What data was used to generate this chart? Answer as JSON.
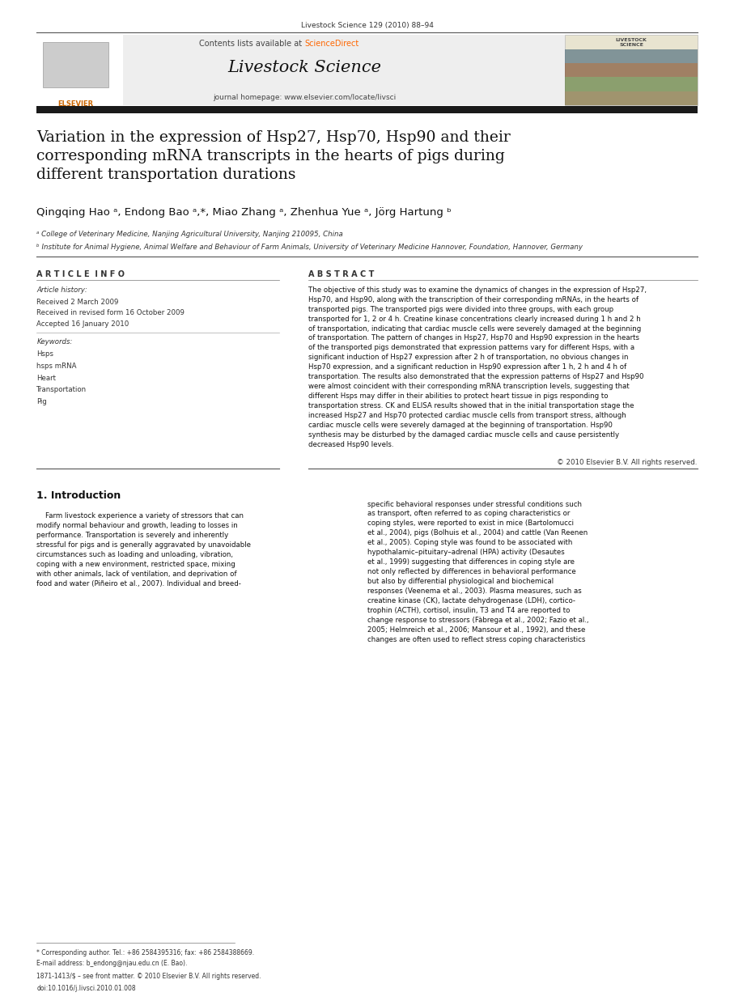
{
  "page_width": 9.07,
  "page_height": 12.37,
  "bg_color": "#ffffff",
  "journal_ref": "Livestock Science 129 (2010) 88–94",
  "header_bg": "#eeeeee",
  "contents_text": "Contents lists available at ",
  "sciencedirect_text": "ScienceDirect",
  "sciencedirect_color": "#ff6600",
  "journal_name": "Livestock Science",
  "journal_homepage": "journal homepage: www.elsevier.com/locate/livsci",
  "dark_bar_color": "#1a1a1a",
  "title": "Variation in the expression of Hsp27, Hsp70, Hsp90 and their\ncorresponding mRNA transcripts in the hearts of pigs during\ndifferent transportation durations",
  "authors": "Qingqing Hao ᵃ, Endong Bao ᵃ,*, Miao Zhang ᵃ, Zhenhua Yue ᵃ, Jörg Hartung ᵇ",
  "affil_a": "ᵃ College of Veterinary Medicine, Nanjing Agricultural University, Nanjing 210095, China",
  "affil_b": "ᵇ Institute for Animal Hygiene, Animal Welfare and Behaviour of Farm Animals, University of Veterinary Medicine Hannover, Foundation, Hannover, Germany",
  "article_info_header": "A R T I C L E  I N F O",
  "abstract_header": "A B S T R A C T",
  "article_history_label": "Article history:",
  "received": "Received 2 March 2009",
  "received_revised": "Received in revised form 16 October 2009",
  "accepted": "Accepted 16 January 2010",
  "keywords_label": "Keywords:",
  "keywords": [
    "Hsps",
    "hsps mRNA",
    "Heart",
    "Transportation",
    "Pig"
  ],
  "abstract_text": "The objective of this study was to examine the dynamics of changes in the expression of Hsp27,\nHsp70, and Hsp90, along with the transcription of their corresponding mRNAs, in the hearts of\ntransported pigs. The transported pigs were divided into three groups, with each group\ntransported for 1, 2 or 4 h. Creatine kinase concentrations clearly increased during 1 h and 2 h\nof transportation, indicating that cardiac muscle cells were severely damaged at the beginning\nof transportation. The pattern of changes in Hsp27, Hsp70 and Hsp90 expression in the hearts\nof the transported pigs demonstrated that expression patterns vary for different Hsps, with a\nsignificant induction of Hsp27 expression after 2 h of transportation, no obvious changes in\nHsp70 expression, and a significant reduction in Hsp90 expression after 1 h, 2 h and 4 h of\ntransportation. The results also demonstrated that the expression patterns of Hsp27 and Hsp90\nwere almost coincident with their corresponding mRNA transcription levels, suggesting that\ndifferent Hsps may differ in their abilities to protect heart tissue in pigs responding to\ntransportation stress. CK and ELISA results showed that in the initial transportation stage the\nincreased Hsp27 and Hsp70 protected cardiac muscle cells from transport stress, although\ncardiac muscle cells were severely damaged at the beginning of transportation. Hsp90\nsynthesis may be disturbed by the damaged cardiac muscle cells and cause persistently\ndecreased Hsp90 levels.",
  "copyright": "© 2010 Elsevier B.V. All rights reserved.",
  "intro_header": "1. Introduction",
  "intro_left": "    Farm livestock experience a variety of stressors that can\nmodify normal behaviour and growth, leading to losses in\nperformance. Transportation is severely and inherently\nstressful for pigs and is generally aggravated by unavoidable\ncircumstances such as loading and unloading, vibration,\ncoping with a new environment, restricted space, mixing\nwith other animals, lack of ventilation, and deprivation of\nfood and water (Piñeiro et al., 2007). Individual and breed-",
  "intro_right": "specific behavioral responses under stressful conditions such\nas transport, often referred to as coping characteristics or\ncoping styles, were reported to exist in mice (Bartolomucci\net al., 2004), pigs (Bolhuis et al., 2004) and cattle (Van Reenen\net al., 2005). Coping style was found to be associated with\nhypothalamic–pituitary–adrenal (HPA) activity (Desautes\net al., 1999) suggesting that differences in coping style are\nnot only reflected by differences in behavioral performance\nbut also by differential physiological and biochemical\nresponses (Veenema et al., 2003). Plasma measures, such as\ncreatine kinase (CK), lactate dehydrogenase (LDH), cortico-\ntrophin (ACTH), cortisol, insulin, T3 and T4 are reported to\nchange response to stressors (Fàbrega et al., 2002; Fazio et al.,\n2005; Helmreich et al., 2006; Mansour et al., 1992), and these\nchanges are often used to reflect stress coping characteristics",
  "footnote_star": "* Corresponding author. Tel.: +86 2584395316; fax: +86 2584388669.",
  "footnote_email": "E-mail address: b_endong@njau.edu.cn (E. Bao).",
  "issn": "1871-1413/$ – see front matter. © 2010 Elsevier B.V. All rights reserved.",
  "doi": "doi:10.1016/j.livsci.2010.01.008"
}
